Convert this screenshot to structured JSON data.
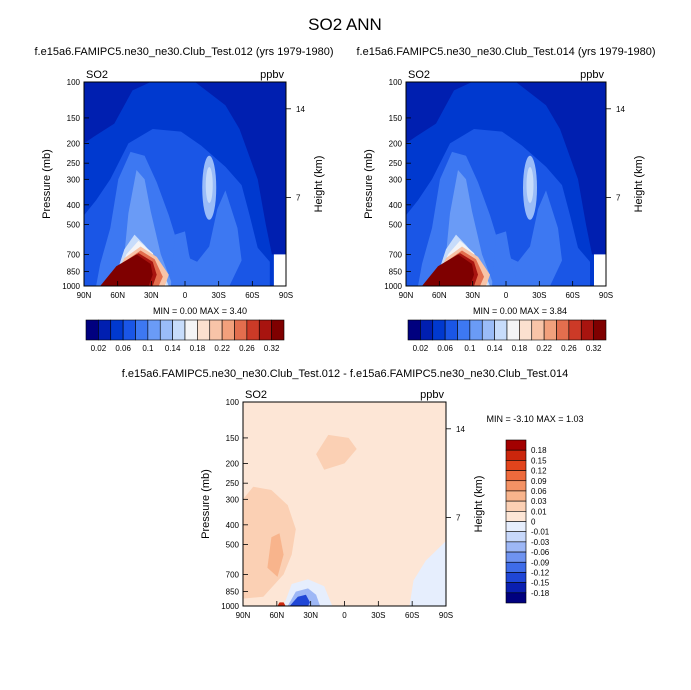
{
  "figure": {
    "title": "SO2 ANN",
    "panel_left_title": "f.e15a6.FAMIPC5.ne30_ne30.Club_Test.012 (yrs 1979-1980)",
    "panel_right_title": "f.e15a6.FAMIPC5.ne30_ne30.Club_Test.014 (yrs 1979-1980)",
    "panel_diff_title": "f.e15a6.FAMIPC5.ne30_ne30.Club_Test.012 - f.e15a6.FAMIPC5.ne30_ne30.Club_Test.014",
    "var_label": "SO2",
    "unit_label": "ppbv",
    "left_minmax": "MIN =  0.00  MAX =  3.40",
    "right_minmax": "MIN =  0.00  MAX =  3.84",
    "diff_minmax": "MIN = -3.10  MAX =  1.03"
  },
  "colors": {
    "field_levels": [
      "#00007f",
      "#001fb0",
      "#0039cf",
      "#1a56e6",
      "#3d78f2",
      "#6a9bf6",
      "#9abcf8",
      "#c7dcfb",
      "#f4f4f6",
      "#fbe0cf",
      "#f8c4a8",
      "#f2a07c",
      "#e36e4e",
      "#cc3a27",
      "#a8140f",
      "#7f0000"
    ],
    "diff_levels": [
      "#00007f",
      "#0a1fb0",
      "#1f46d6",
      "#3f6ce8",
      "#6f93f0",
      "#9db7f6",
      "#c7d8fb",
      "#e6eefd",
      "#fde6d6",
      "#fbd0b4",
      "#f8b48c",
      "#f49264",
      "#ee6a3c",
      "#e2441c",
      "#cb260c",
      "#a30000"
    ]
  },
  "chart_data": [
    {
      "type": "heatmap",
      "title": "f.e15a6.FAMIPC5.ne30_ne30.Club_Test.012 (yrs 1979-1980)",
      "variable": "SO2",
      "unit": "ppbv",
      "xlabel": "",
      "ylabel": "Pressure (mb)",
      "y2label": "Height (km)",
      "x_ticks": [
        "90N",
        "60N",
        "30N",
        "0",
        "30S",
        "60S",
        "90S"
      ],
      "y_ticks": [
        100,
        150,
        200,
        250,
        300,
        400,
        500,
        700,
        850,
        1000
      ],
      "y2_ticks": [
        14,
        7
      ],
      "ylim": [
        1000,
        100
      ],
      "y_scale": "log",
      "colorbar_labels": [
        "0.02",
        "0.06",
        "0.1",
        "0.14",
        "0.18",
        "0.22",
        "0.26",
        "0.32"
      ],
      "min": 0.0,
      "max": 3.4
    },
    {
      "type": "heatmap",
      "title": "f.e15a6.FAMIPC5.ne30_ne30.Club_Test.014 (yrs 1979-1980)",
      "variable": "SO2",
      "unit": "ppbv",
      "xlabel": "",
      "ylabel": "Pressure (mb)",
      "y2label": "Height (km)",
      "x_ticks": [
        "90N",
        "60N",
        "30N",
        "0",
        "30S",
        "60S",
        "90S"
      ],
      "y_ticks": [
        100,
        150,
        200,
        250,
        300,
        400,
        500,
        700,
        850,
        1000
      ],
      "y2_ticks": [
        14,
        7
      ],
      "ylim": [
        1000,
        100
      ],
      "y_scale": "log",
      "colorbar_labels": [
        "0.02",
        "0.06",
        "0.1",
        "0.14",
        "0.18",
        "0.22",
        "0.26",
        "0.32"
      ],
      "min": 0.0,
      "max": 3.84
    },
    {
      "type": "heatmap",
      "title": "f.e15a6.FAMIPC5.ne30_ne30.Club_Test.012 - f.e15a6.FAMIPC5.ne30_ne30.Club_Test.014",
      "variable": "SO2",
      "unit": "ppbv",
      "xlabel": "",
      "ylabel": "Pressure (mb)",
      "y2label": "Height (km)",
      "x_ticks": [
        "90N",
        "60N",
        "30N",
        "0",
        "30S",
        "60S",
        "90S"
      ],
      "y_ticks": [
        100,
        150,
        200,
        250,
        300,
        400,
        500,
        700,
        850,
        1000
      ],
      "y2_ticks": [
        14,
        7
      ],
      "ylim": [
        1000,
        100
      ],
      "y_scale": "log",
      "colorbar_labels": [
        "0.18",
        "0.15",
        "0.12",
        "0.09",
        "0.06",
        "0.03",
        "0.01",
        "0",
        "-0.01",
        "-0.03",
        "-0.06",
        "-0.09",
        "-0.12",
        "-0.15",
        "-0.18"
      ],
      "min": -3.1,
      "max": 1.03
    }
  ]
}
